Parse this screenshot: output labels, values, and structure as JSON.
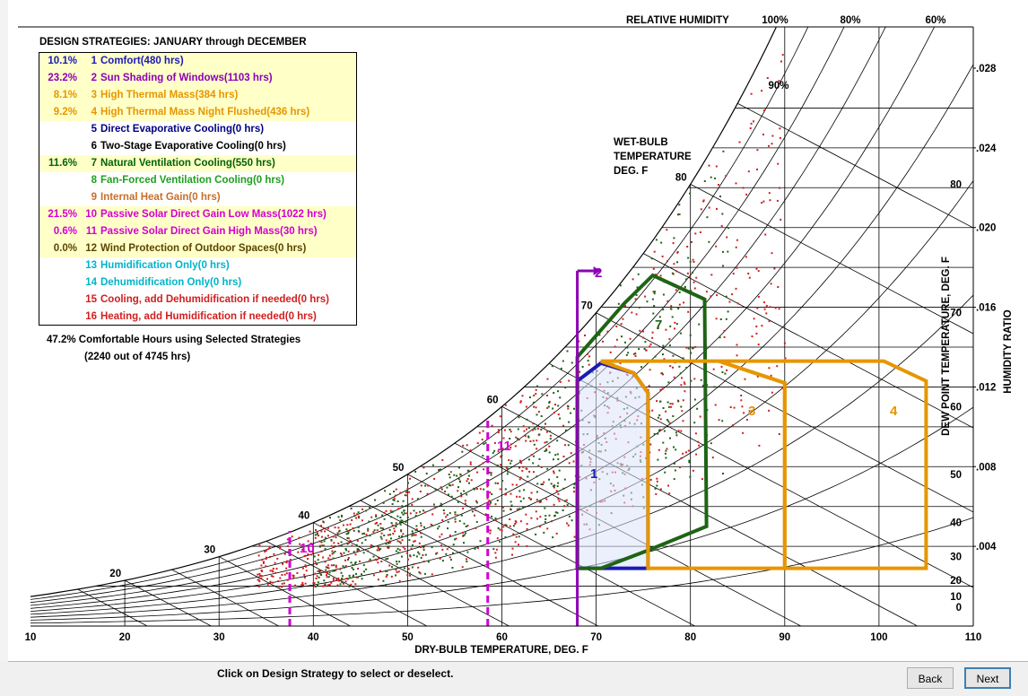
{
  "header": {
    "relative_humidity_label": "RELATIVE HUMIDITY",
    "rh_labels": [
      "100%",
      "80%",
      "60%"
    ],
    "rh_90_label": "90%"
  },
  "legend": {
    "title": "DESIGN STRATEGIES:  JANUARY through DECEMBER",
    "items": [
      {
        "pct": "10.1%",
        "num": "1",
        "label": "Comfort(480 hrs)",
        "color": "#1a1ab4",
        "selected": true
      },
      {
        "pct": "23.2%",
        "num": "2",
        "label": "Sun Shading of Windows(1103 hrs)",
        "color": "#8c00b4",
        "selected": true
      },
      {
        "pct": "8.1%",
        "num": "3",
        "label": "High Thermal Mass(384 hrs)",
        "color": "#e69600",
        "selected": true
      },
      {
        "pct": "9.2%",
        "num": "4",
        "label": "High Thermal Mass Night Flushed(436 hrs)",
        "color": "#e69600",
        "selected": true
      },
      {
        "pct": "",
        "num": "5",
        "label": "Direct Evaporative Cooling(0 hrs)",
        "color": "#000080",
        "selected": false
      },
      {
        "pct": "",
        "num": "6",
        "label": "Two-Stage Evaporative Cooling(0 hrs)",
        "color": "#000000",
        "selected": false
      },
      {
        "pct": "11.6%",
        "num": "7",
        "label": "Natural Ventilation Cooling(550 hrs)",
        "color": "#006400",
        "selected": true
      },
      {
        "pct": "",
        "num": "8",
        "label": "Fan-Forced Ventilation Cooling(0 hrs)",
        "color": "#1ea01e",
        "selected": false
      },
      {
        "pct": "",
        "num": "9",
        "label": "Internal Heat Gain(0 hrs)",
        "color": "#c86e28",
        "selected": false
      },
      {
        "pct": "21.5%",
        "num": "10",
        "label": "Passive Solar Direct Gain Low Mass(1022 hrs)",
        "color": "#d200d2",
        "selected": true
      },
      {
        "pct": "0.6%",
        "num": "11",
        "label": "Passive Solar Direct Gain High Mass(30 hrs)",
        "color": "#d200d2",
        "selected": true
      },
      {
        "pct": "0.0%",
        "num": "12",
        "label": "Wind Protection of Outdoor Spaces(0 hrs)",
        "color": "#5a4600",
        "selected": true
      },
      {
        "pct": "",
        "num": "13",
        "label": "Humidification Only(0 hrs)",
        "color": "#00b4c8",
        "selected": false
      },
      {
        "pct": "",
        "num": "14",
        "label": "Dehumidification Only(0 hrs)",
        "color": "#00b4c8",
        "selected": false
      },
      {
        "pct": "",
        "num": "15",
        "label": "Cooling, add Dehumidification if needed(0 hrs)",
        "color": "#d21e1e",
        "selected": false
      },
      {
        "pct": "",
        "num": "16",
        "label": "Heating, add Humidification if needed(0 hrs)",
        "color": "#d21e1e",
        "selected": false
      }
    ]
  },
  "summary": {
    "line1": "47.2%   Comfortable Hours using Selected Strategies",
    "line2": "(2240 out of 4745 hrs)"
  },
  "labels": {
    "wet_bulb": [
      "WET-BULB",
      "TEMPERATURE",
      "DEG. F"
    ],
    "dew_point": "DEW POINT TEMPERATURE, DEG. F",
    "humidity_ratio": "HUMIDITY RATIO",
    "dry_bulb": "DRY-BULB TEMPERATURE, DEG. F"
  },
  "chart_data": {
    "type": "scatter",
    "title": "DESIGN STRATEGIES:  JANUARY through DECEMBER",
    "xlabel": "DRY-BULB TEMPERATURE, DEG. F",
    "ylabel": "HUMIDITY RATIO",
    "xlim": [
      10,
      110
    ],
    "ylim": [
      0,
      0.03
    ],
    "x_ticks": [
      "10",
      "20",
      "30",
      "40",
      "50",
      "60",
      "70",
      "80",
      "90",
      "100",
      "110"
    ],
    "humidity_ratio_ticks": [
      ".004",
      ".008",
      ".012",
      ".016",
      ".020",
      ".024",
      ".028"
    ],
    "dew_point_ticks": [
      "0",
      "10",
      "20",
      "30",
      "40",
      "50",
      "60",
      "70",
      "80"
    ],
    "wet_bulb_ticks": [
      "20",
      "30",
      "40",
      "50",
      "60",
      "70",
      "80"
    ],
    "strategy_zone_labels": [
      "1",
      "2",
      "3",
      "4",
      "7",
      "10",
      "11"
    ],
    "zones": [
      {
        "id": "1",
        "color": "#1a1ab4",
        "fill": "#dde4fb",
        "points": [
          [
            68,
            0.0029
          ],
          [
            75.5,
            0.0029
          ],
          [
            75.5,
            0.0117
          ],
          [
            74,
            0.0127
          ],
          [
            70.5,
            0.0132
          ],
          [
            68,
            0.0123
          ]
        ]
      },
      {
        "id": "7",
        "color": "#1e6414",
        "fill": "",
        "points": [
          [
            68,
            0.0135
          ],
          [
            73,
            0.0162
          ],
          [
            76,
            0.0176
          ],
          [
            81.5,
            0.0164
          ],
          [
            81.7,
            0.005
          ],
          [
            75.5,
            0.0038
          ],
          [
            70.5,
            0.0029
          ],
          [
            68,
            0.0029
          ]
        ]
      },
      {
        "id": "3",
        "color": "#e69600",
        "fill": "",
        "points": [
          [
            70.5,
            0.0133
          ],
          [
            83,
            0.0133
          ],
          [
            90,
            0.0122
          ],
          [
            90,
            0.0029
          ],
          [
            75.5,
            0.0029
          ],
          [
            75.5,
            0.0117
          ],
          [
            74,
            0.0127
          ]
        ]
      },
      {
        "id": "4",
        "color": "#e69600",
        "fill": "",
        "points": [
          [
            83,
            0.0133
          ],
          [
            100.5,
            0.0133
          ],
          [
            105,
            0.0123
          ],
          [
            105,
            0.0029
          ],
          [
            90,
            0.0029
          ],
          [
            90,
            0.0122
          ]
        ]
      }
    ],
    "boundaries": [
      {
        "id": "2",
        "x": 68,
        "color": "#8c00b4"
      },
      {
        "id": "10",
        "x": 37.5,
        "color": "#d200d2"
      },
      {
        "id": "11",
        "x": 58.5,
        "color": "#d200d2"
      }
    ],
    "series": [
      {
        "color": "#d21e1e",
        "x_range": [
          34,
          90
        ]
      },
      {
        "color": "#1e6414",
        "x_range": [
          40,
          84
        ]
      }
    ]
  },
  "footer": {
    "instruction": "Click on Design Strategy to select or deselect.",
    "back_label": "Back",
    "next_label": "Next"
  }
}
